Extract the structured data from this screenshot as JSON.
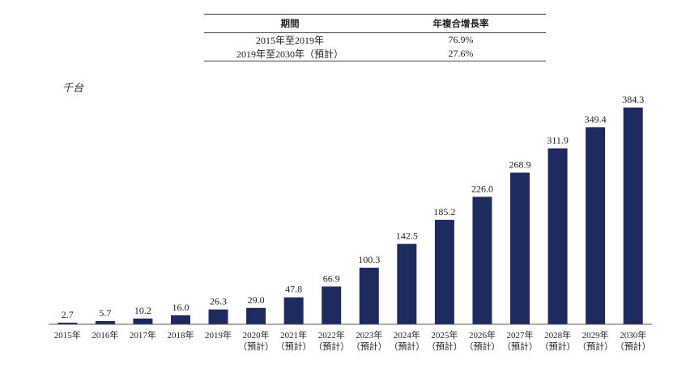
{
  "table": {
    "headers": [
      "期間",
      "年複合增長率"
    ],
    "rows": [
      {
        "period": "2015年至2019年",
        "rate": "76.9%"
      },
      {
        "period": "2019年至2030年（預計）",
        "rate": "27.6%"
      }
    ]
  },
  "unit_label": "千台",
  "colors": {
    "bar": "#1f2a5e",
    "axis": "#555555"
  },
  "chart_data": {
    "type": "bar",
    "categories": [
      {
        "year": "2015年",
        "note": ""
      },
      {
        "year": "2016年",
        "note": ""
      },
      {
        "year": "2017年",
        "note": ""
      },
      {
        "year": "2018年",
        "note": ""
      },
      {
        "year": "2019年",
        "note": ""
      },
      {
        "year": "2020年",
        "note": "（預計）"
      },
      {
        "year": "2021年",
        "note": "（預計）"
      },
      {
        "year": "2022年",
        "note": "（預計）"
      },
      {
        "year": "2023年",
        "note": "（預計）"
      },
      {
        "year": "2024年",
        "note": "（預計）"
      },
      {
        "year": "2025年",
        "note": "（預計）"
      },
      {
        "year": "2026年",
        "note": "（預計）"
      },
      {
        "year": "2027年",
        "note": "（預計）"
      },
      {
        "year": "2028年",
        "note": "（預計）"
      },
      {
        "year": "2029年",
        "note": "（預計）"
      },
      {
        "year": "2030年",
        "note": "（預計）"
      }
    ],
    "values": [
      2.7,
      5.7,
      10.2,
      16.0,
      26.3,
      29.0,
      47.8,
      66.9,
      100.3,
      142.5,
      185.2,
      226.0,
      268.9,
      311.9,
      349.4,
      384.3
    ],
    "value_labels": [
      "2.7",
      "5.7",
      "10.2",
      "16.0",
      "26.3",
      "29.0",
      "47.8",
      "66.9",
      "100.3",
      "142.5",
      "185.2",
      "226.0",
      "268.9",
      "311.9",
      "349.4",
      "384.3"
    ],
    "ylabel": "千台",
    "ylim": [
      0,
      384.3
    ],
    "grid": false,
    "legend": "none"
  }
}
